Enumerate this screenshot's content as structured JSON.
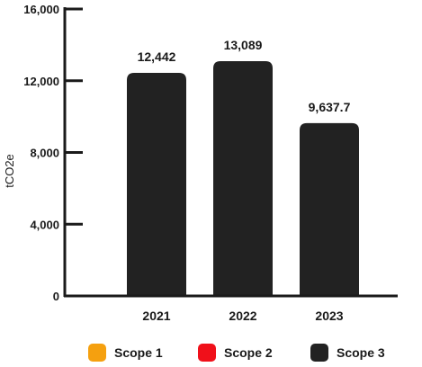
{
  "chart_data": {
    "type": "bar",
    "stacked": true,
    "categories": [
      "2021",
      "2022",
      "2023"
    ],
    "series": [
      {
        "name": "Scope 1",
        "color": "#F5A00F",
        "values": [
          35,
          35,
          35
        ]
      },
      {
        "name": "Scope 2",
        "color": "#F0101A",
        "values": [
          10,
          10,
          10
        ]
      },
      {
        "name": "Scope 3",
        "color": "#222222",
        "values": [
          12397,
          13044,
          9592.7
        ]
      }
    ],
    "totals": [
      "12,442",
      "13,089",
      "9,637.7"
    ],
    "total_values": [
      12442,
      13089,
      9637.7
    ],
    "ylabel": "tCO2e",
    "ylim": [
      0,
      16000
    ],
    "yticks": [
      0,
      4000,
      8000,
      12000,
      16000
    ],
    "ytick_labels": [
      "0",
      "4,000",
      "8,000",
      "12,000",
      "16,000"
    ],
    "grid": false,
    "legend_placement": "bottom"
  }
}
